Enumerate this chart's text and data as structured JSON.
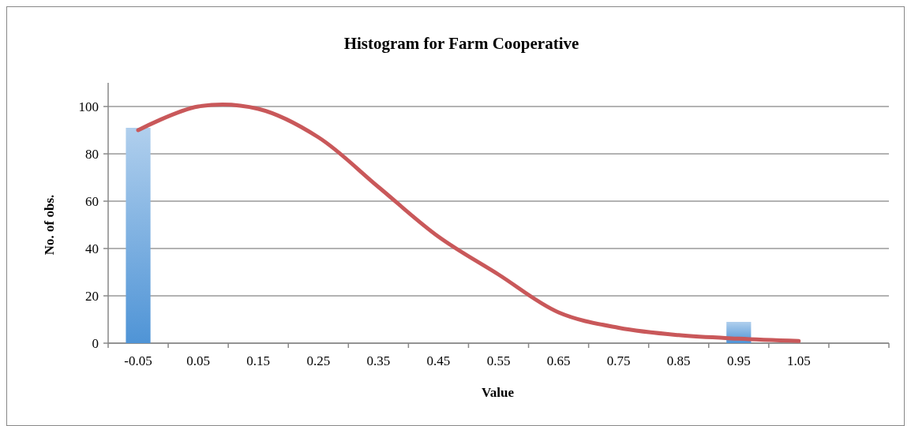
{
  "chart_data": {
    "type": "bar",
    "title": "Histogram for Farm Cooperative",
    "xlabel": "Value",
    "ylabel": "No. of obs.",
    "categories": [
      "-0.05",
      "0.05",
      "0.15",
      "0.25",
      "0.35",
      "0.45",
      "0.55",
      "0.65",
      "0.75",
      "0.85",
      "0.95",
      "1.05",
      null
    ],
    "series": [
      {
        "color": "#4f94d6",
        "values": [
          91,
          0,
          0,
          0,
          0,
          0,
          0,
          0,
          0,
          0,
          9,
          0,
          null
        ]
      },
      {
        "type": "line",
        "color": "#c9585a",
        "values": [
          90,
          100,
          99,
          87,
          66,
          45,
          29,
          13,
          6.5,
          3.4,
          1.9,
          0.9,
          null
        ]
      }
    ],
    "ylim": [
      0,
      110
    ],
    "yticks": [
      0,
      20,
      40,
      60,
      80,
      100
    ],
    "grid": "y"
  }
}
